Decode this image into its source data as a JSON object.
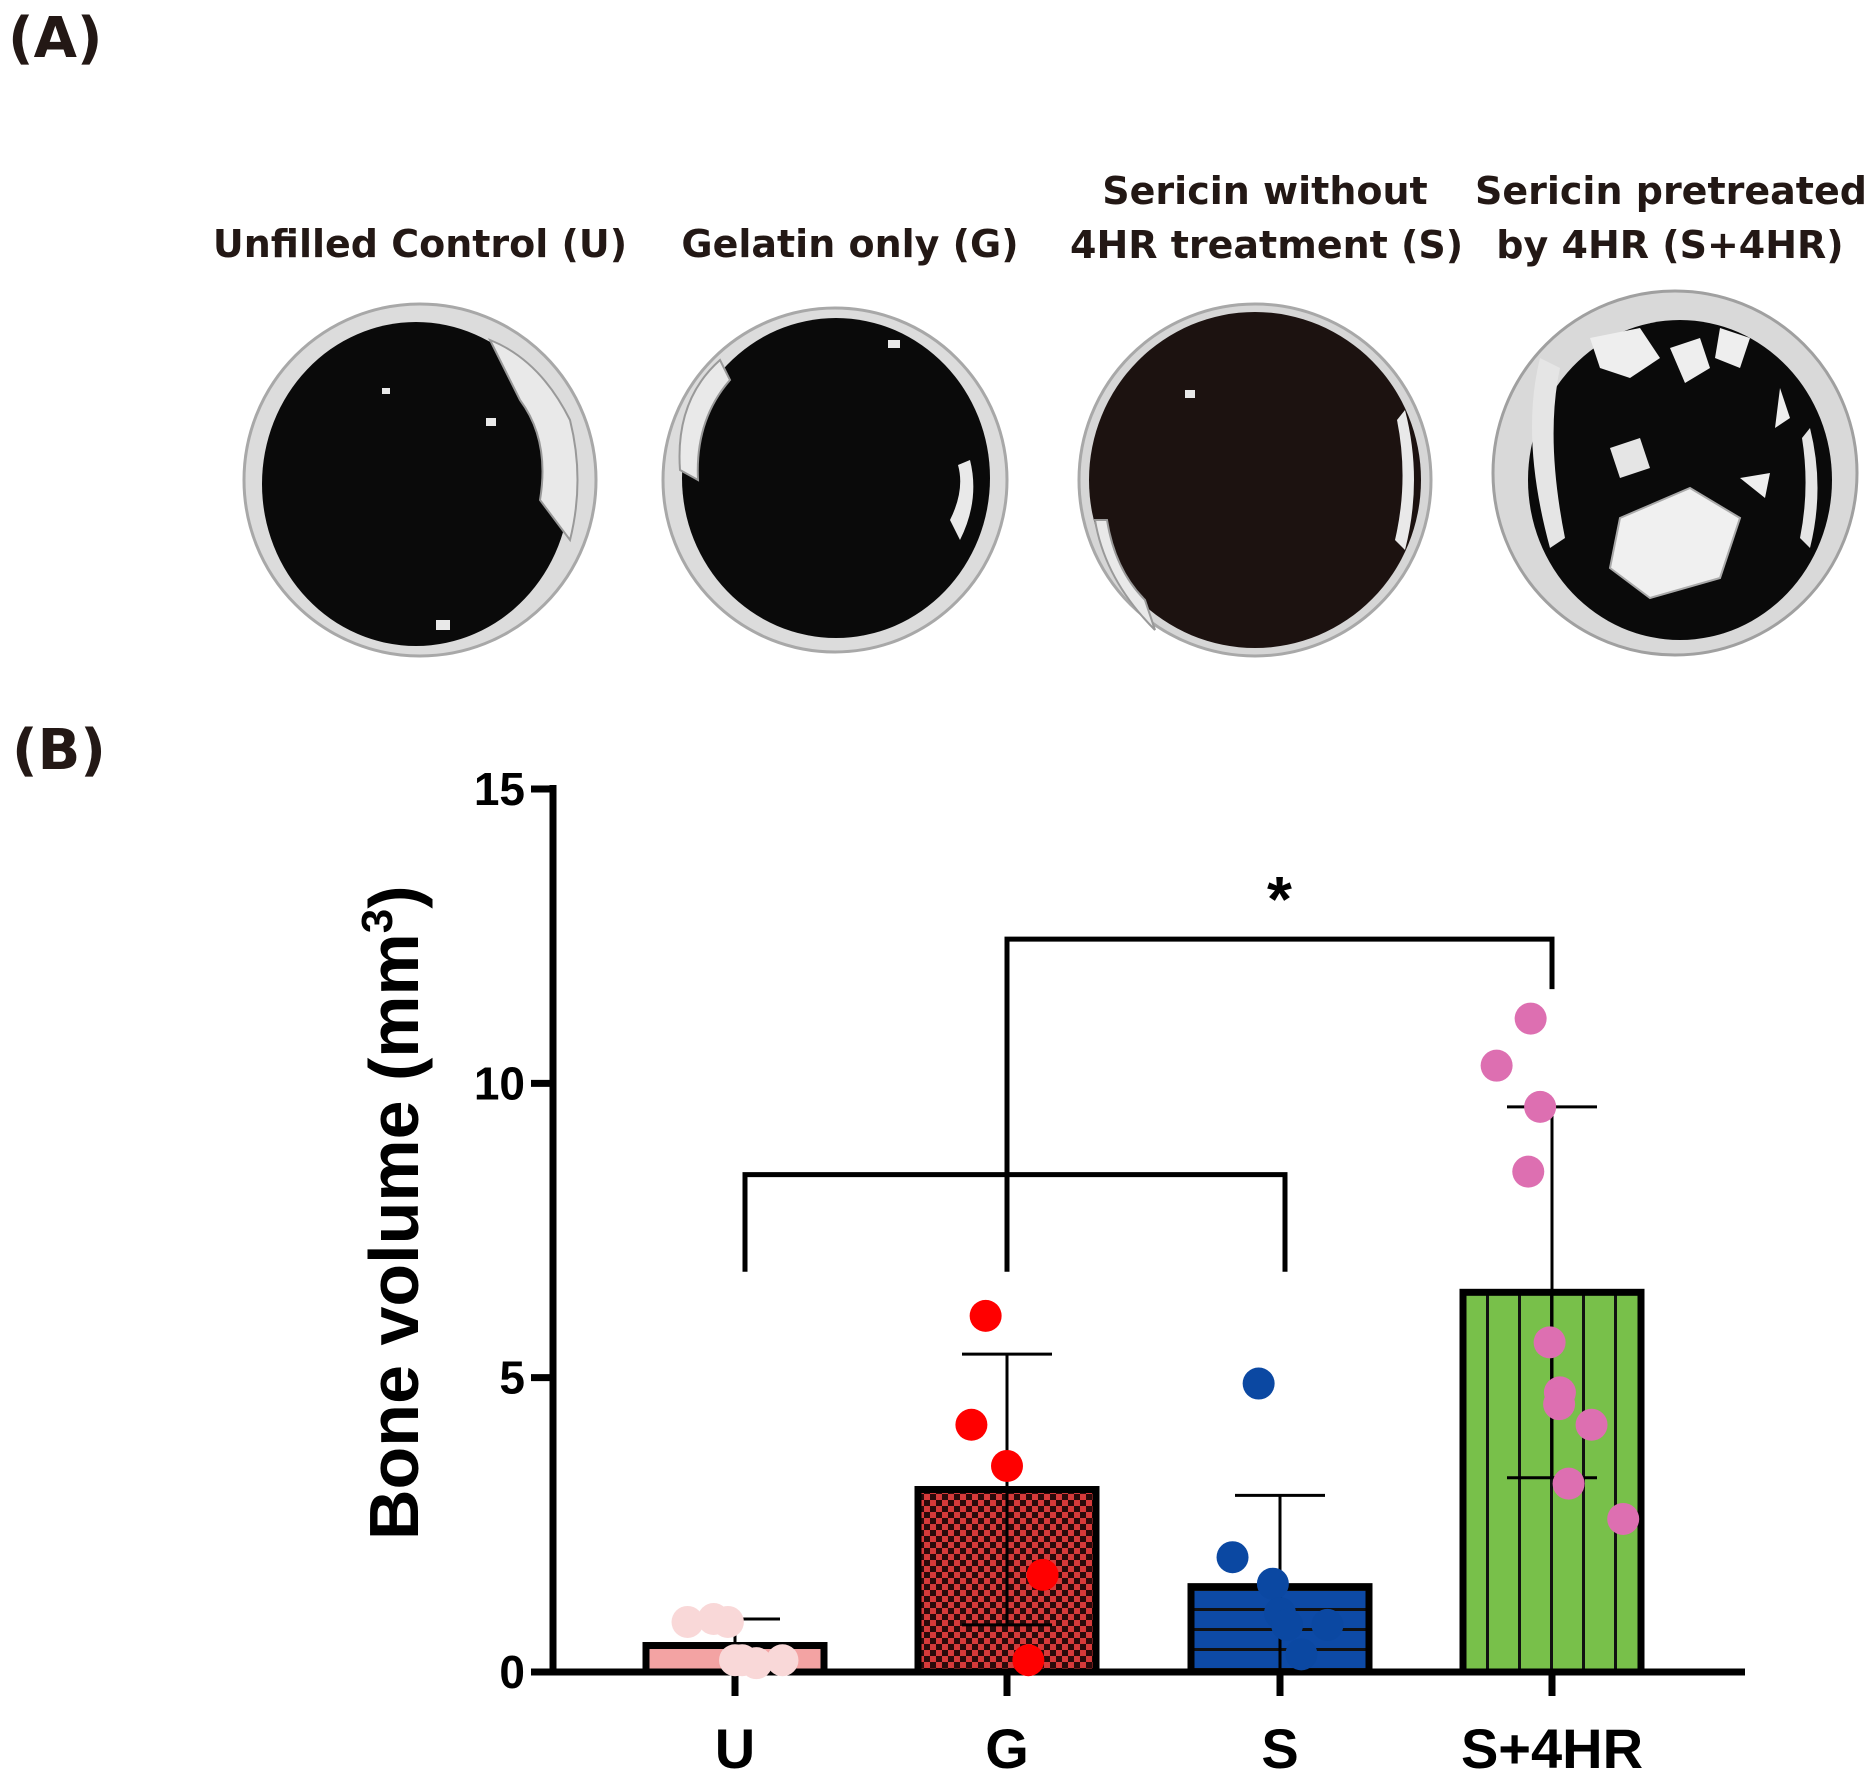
{
  "panel_a": {
    "label": "(A)",
    "columns": [
      {
        "title_lines": [
          "Unfilled Control (U)"
        ]
      },
      {
        "title_lines": [
          "Gelatin only (G)"
        ]
      },
      {
        "title_lines": [
          "Sericin without",
          "4HR treatment (S)"
        ]
      },
      {
        "title_lines": [
          "Sericin pretreated",
          "by 4HR (S+4HR)"
        ]
      }
    ],
    "colors": {
      "void": "#0a0a0a",
      "bone": "#e9e9e9",
      "rim": "#cfcfcf",
      "void_s": "#1c1210"
    }
  },
  "panel_b": {
    "label": "(B)"
  },
  "chart_data": {
    "type": "bar",
    "title": "",
    "xlabel": "",
    "ylabel": "Bone volume (mm3)",
    "ylabel_main": "Bone volume (mm",
    "ylabel_sup": "3",
    "ylabel_end": ")",
    "ylim": [
      0,
      15
    ],
    "yticks": [
      0,
      5,
      10,
      15
    ],
    "categories": [
      "U",
      "G",
      "S",
      "S+4HR"
    ],
    "means": [
      0.45,
      3.1,
      1.45,
      6.45
    ],
    "sd": [
      0.45,
      2.3,
      1.55,
      3.15
    ],
    "series": [
      {
        "name": "U",
        "color": "#f3a3a3",
        "pattern": "solid",
        "point_color": "#f9d8d8",
        "points": [
          0.9,
          0.85,
          0.85,
          0.2,
          0.2,
          0.2,
          0.15
        ]
      },
      {
        "name": "G",
        "color": "#d63a3a",
        "pattern": "checker",
        "point_color": "#ff0000",
        "points": [
          6.05,
          4.2,
          3.5,
          1.65,
          0.2
        ]
      },
      {
        "name": "S",
        "color": "#0d4aa6",
        "pattern": "stripes-horizontal",
        "point_color": "#0b48a2",
        "points": [
          4.9,
          1.95,
          1.5,
          1.0,
          0.8,
          0.8,
          0.3
        ]
      },
      {
        "name": "S+4HR",
        "color": "#78c04a",
        "pattern": "stripes-vertical",
        "point_color": "#dd6fb1",
        "points": [
          11.1,
          10.3,
          9.6,
          8.5,
          5.6,
          4.75,
          4.55,
          4.2,
          3.2,
          2.6
        ]
      }
    ],
    "significance": {
      "label": "*",
      "groups_a": [
        "U",
        "G",
        "S"
      ],
      "group_b": "S+4HR"
    }
  }
}
